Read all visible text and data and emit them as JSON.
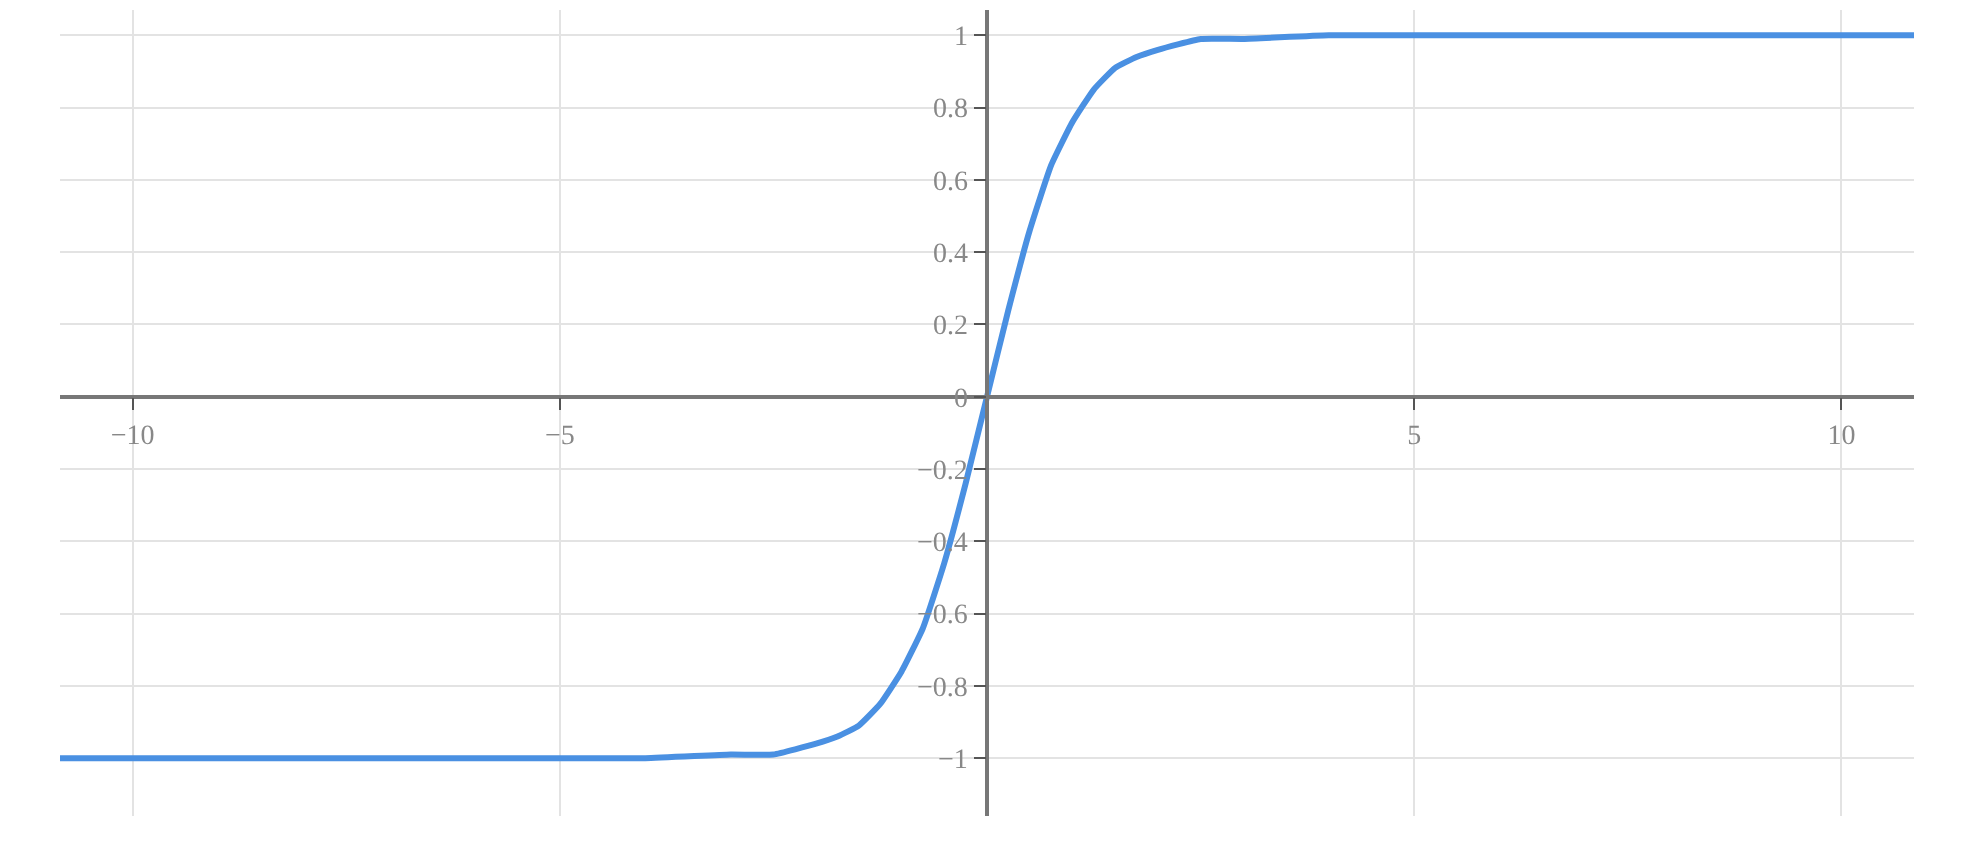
{
  "chart_data": {
    "type": "line",
    "x": [
      -10.85,
      -8,
      -6,
      -4,
      -3,
      -2.5,
      -2,
      -1.75,
      -1.5,
      -1.25,
      -1,
      -0.75,
      -0.5,
      -0.25,
      0,
      0.25,
      0.5,
      0.75,
      1,
      1.25,
      1.5,
      1.75,
      2,
      2.5,
      3,
      4,
      6,
      8,
      10.85
    ],
    "series": [
      {
        "color": "#4a90e2",
        "values": [
          -1,
          -1,
          -1,
          -1,
          -0.99,
          -0.99,
          -0.96,
          -0.94,
          -0.91,
          -0.85,
          -0.76,
          -0.64,
          -0.46,
          -0.24,
          0,
          0.24,
          0.46,
          0.64,
          0.76,
          0.85,
          0.91,
          0.94,
          0.96,
          0.99,
          0.99,
          1,
          1,
          1,
          1
        ]
      }
    ],
    "xlim": [
      -10.85,
      10.85
    ],
    "ylim": [
      -1.16,
      1.07
    ],
    "xticks": [
      {
        "value": -10,
        "label": "−10"
      },
      {
        "value": -5,
        "label": "−5"
      },
      5,
      10
    ],
    "yticks": [
      {
        "value": -1,
        "label": "−1"
      },
      {
        "value": -0.8,
        "label": "−0.8"
      },
      {
        "value": -0.6,
        "label": "−0.6"
      },
      {
        "value": -0.4,
        "label": "−0.4"
      },
      {
        "value": -0.2,
        "label": "−0.2"
      },
      0,
      0.2,
      0.4,
      0.6,
      0.8,
      1
    ],
    "grid": true,
    "marker": "none",
    "line_style": "solid"
  }
}
